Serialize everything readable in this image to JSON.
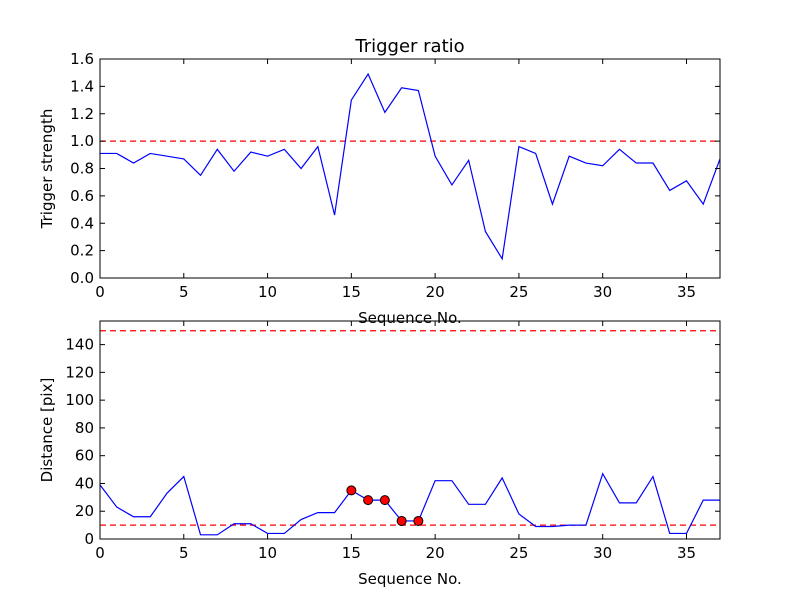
{
  "chart_data": [
    {
      "type": "line",
      "title": "Trigger ratio",
      "xlabel": "Sequence No.",
      "ylabel": "Trigger strength",
      "xlim": [
        0,
        37
      ],
      "ylim": [
        0,
        1.6
      ],
      "xticks": [
        0,
        5,
        10,
        15,
        20,
        25,
        30,
        35
      ],
      "yticks": [
        0.0,
        0.2,
        0.4,
        0.6,
        0.8,
        1.0,
        1.2,
        1.4,
        1.6
      ],
      "ytick_labels": [
        "0.0",
        "0.2",
        "0.4",
        "0.6",
        "0.8",
        "1.0",
        "1.2",
        "1.4",
        "1.6"
      ],
      "grid": false,
      "thresholds": [
        {
          "y": 1.0,
          "color": "#ff0000",
          "style": "dashed"
        }
      ],
      "series": [
        {
          "color": "#0000ff",
          "x": [
            0,
            1,
            2,
            3,
            4,
            5,
            6,
            7,
            8,
            9,
            10,
            11,
            12,
            13,
            14,
            15,
            16,
            17,
            18,
            19,
            20,
            21,
            22,
            23,
            24,
            25,
            26,
            27,
            28,
            29,
            30,
            31,
            32,
            33,
            34,
            35,
            36,
            37
          ],
          "y": [
            0.91,
            0.91,
            0.84,
            0.91,
            0.89,
            0.87,
            0.75,
            0.94,
            0.78,
            0.92,
            0.89,
            0.94,
            0.8,
            0.96,
            0.46,
            1.3,
            1.49,
            1.21,
            1.39,
            1.37,
            0.89,
            0.68,
            0.86,
            0.34,
            0.14,
            0.96,
            0.91,
            0.54,
            0.89,
            0.84,
            0.82,
            0.94,
            0.84,
            0.84,
            0.64,
            0.71,
            0.54,
            0.87
          ]
        }
      ]
    },
    {
      "type": "line",
      "title": "",
      "xlabel": "Sequence No.",
      "ylabel": "Distance [pix]",
      "xlim": [
        0,
        37
      ],
      "ylim": [
        0,
        157
      ],
      "xticks": [
        0,
        5,
        10,
        15,
        20,
        25,
        30,
        35
      ],
      "yticks": [
        0,
        20,
        40,
        60,
        80,
        100,
        120,
        140
      ],
      "ytick_labels": [
        "0",
        "20",
        "40",
        "60",
        "80",
        "100",
        "120",
        "140"
      ],
      "grid": false,
      "thresholds": [
        {
          "y": 150,
          "color": "#ff0000",
          "style": "dashed"
        },
        {
          "y": 10,
          "color": "#ff0000",
          "style": "dashed"
        }
      ],
      "series": [
        {
          "color": "#0000ff",
          "x": [
            0,
            1,
            2,
            3,
            4,
            5,
            6,
            7,
            8,
            9,
            10,
            11,
            12,
            13,
            14,
            15,
            16,
            17,
            18,
            19,
            20,
            21,
            22,
            23,
            24,
            25,
            26,
            27,
            28,
            29,
            30,
            31,
            32,
            33,
            34,
            35,
            36,
            37
          ],
          "y": [
            39,
            23,
            16,
            16,
            33,
            45,
            3,
            3,
            11,
            11,
            4,
            4,
            14,
            19,
            19,
            35,
            28,
            28,
            13,
            13,
            42,
            42,
            25,
            25,
            44,
            18,
            9,
            9,
            10,
            10,
            47,
            26,
            26,
            45,
            4,
            4,
            28,
            28
          ]
        }
      ],
      "markers": {
        "color": "#ff0000",
        "x": [
          15,
          16,
          17,
          18,
          19
        ],
        "y": [
          35,
          28,
          28,
          13,
          13
        ]
      }
    }
  ]
}
